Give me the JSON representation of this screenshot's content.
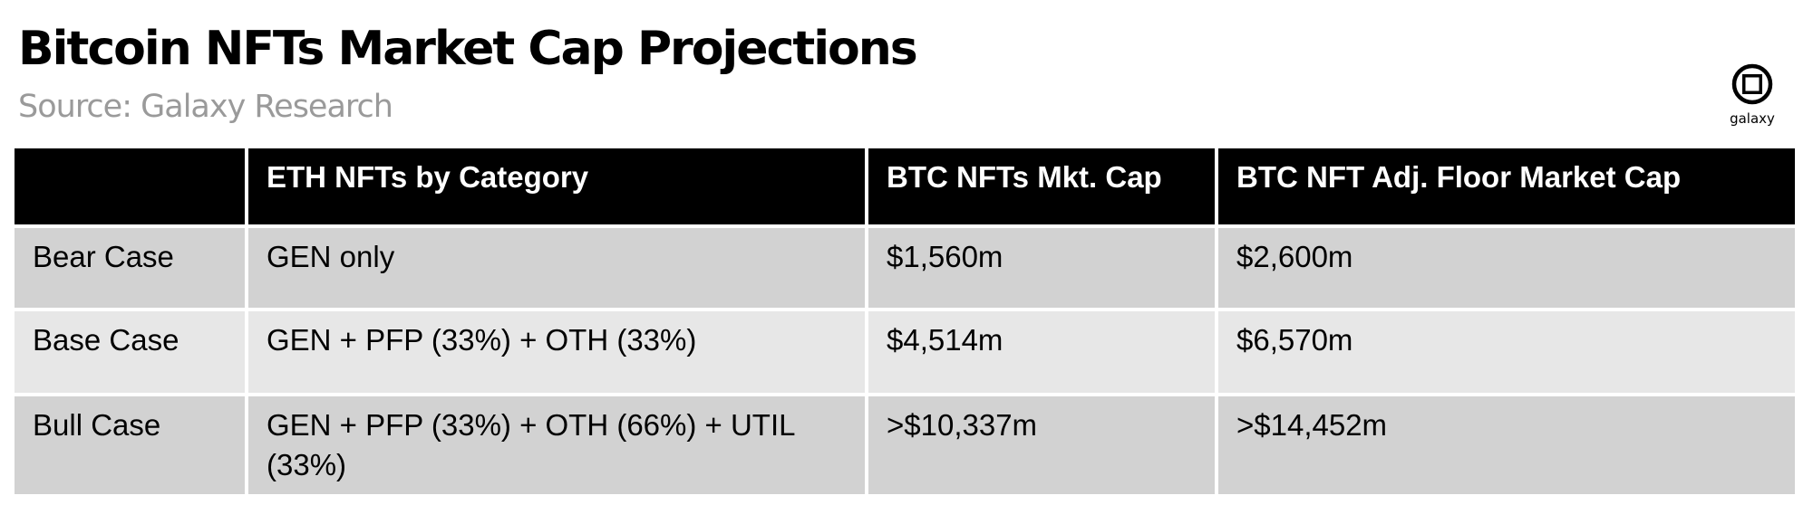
{
  "title": "Bitcoin NFTs Market Cap Projections",
  "subtitle": "Source: Galaxy Research",
  "logo_text": "galaxy",
  "colors": {
    "header_bg": "#000000",
    "header_text": "#ffffff",
    "row_dark": "#d2d2d2",
    "row_light": "#e7e7e7",
    "source_text": "#9a9a9a"
  },
  "chart_data": {
    "type": "table",
    "title": "Bitcoin NFTs Market Cap Projections",
    "subtitle": "Source: Galaxy Research",
    "columns": [
      "",
      "ETH NFTs by Category",
      "BTC NFTs Mkt. Cap",
      "BTC NFT Adj. Floor Market Cap"
    ],
    "rows": [
      {
        "case": "Bear Case",
        "category": "GEN only",
        "mkt_cap": "$1,560m",
        "adj_floor": "$2,600m"
      },
      {
        "case": "Base Case",
        "category": "GEN + PFP (33%) + OTH (33%)",
        "mkt_cap": "$4,514m",
        "adj_floor": "$6,570m"
      },
      {
        "case": "Bull Case",
        "category": "GEN + PFP (33%) + OTH (66%) + UTIL (33%)",
        "mkt_cap": ">$10,337m",
        "adj_floor": ">$14,452m"
      }
    ]
  }
}
